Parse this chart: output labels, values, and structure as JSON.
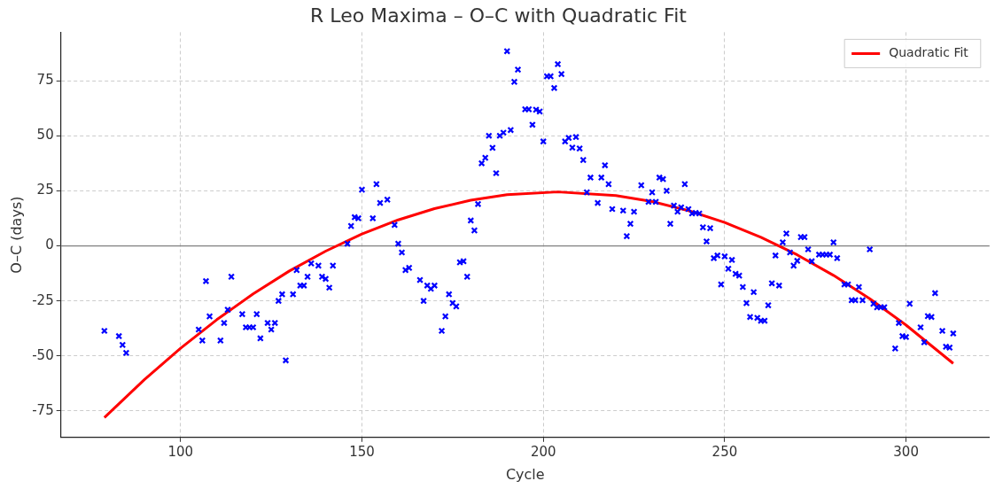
{
  "chart_data": {
    "type": "scatter",
    "title": "R Leo Maxima – O–C with Quadratic Fit",
    "xlabel": "Cycle",
    "ylabel": "O–C (days)",
    "xlim": [
      67,
      323
    ],
    "ylim": [
      -87,
      97
    ],
    "xticks": [
      100,
      150,
      200,
      250,
      300
    ],
    "yticks": [
      -75,
      -50,
      -25,
      0,
      25,
      50,
      75
    ],
    "grid": true,
    "legend": "top right",
    "marker": "cross",
    "ref_lines": [
      {
        "axis": "y",
        "value": 0,
        "color": "#808080"
      }
    ],
    "series": [
      {
        "color": "#0000ff",
        "x": [
          79,
          83,
          84,
          85,
          105,
          106,
          107,
          108,
          111,
          112,
          113,
          114,
          117,
          118,
          119,
          120,
          121,
          122,
          124,
          125,
          126,
          127,
          128,
          129,
          131,
          132,
          133,
          134,
          135,
          136,
          138,
          139,
          140,
          141,
          142,
          146,
          147,
          148,
          149,
          150,
          153,
          154,
          155,
          157,
          159,
          160,
          161,
          162,
          163,
          166,
          167,
          168,
          169,
          170,
          172,
          173,
          174,
          175,
          176,
          177,
          178,
          179,
          180,
          181,
          182,
          183,
          184,
          185,
          186,
          187,
          188,
          189,
          190,
          191,
          192,
          193,
          195,
          196,
          197,
          198,
          199,
          200,
          201,
          202,
          203,
          204,
          205,
          206,
          207,
          208,
          209,
          210,
          211,
          212,
          213,
          215,
          216,
          217,
          218,
          219,
          222,
          223,
          224,
          225,
          227,
          229,
          230,
          231,
          232,
          233,
          234,
          235,
          236,
          237,
          238,
          239,
          240,
          241,
          242,
          243,
          244,
          245,
          246,
          247,
          248,
          249,
          250,
          251,
          252,
          253,
          254,
          255,
          256,
          257,
          258,
          259,
          260,
          261,
          262,
          263,
          264,
          265,
          266,
          267,
          268,
          269,
          270,
          271,
          272,
          273,
          274,
          276,
          277,
          278,
          279,
          280,
          281,
          283,
          284,
          285,
          286,
          287,
          288,
          290,
          291,
          292,
          293,
          294,
          297,
          298,
          299,
          300,
          301,
          304,
          305,
          306,
          307,
          308,
          310,
          311,
          312,
          313
        ],
        "values": [
          -38.6,
          -41,
          -45,
          -48.6,
          -38,
          -43,
          -16,
          -32,
          -43,
          -35,
          -29,
          -14,
          -31,
          -37,
          -37,
          -37,
          -31,
          -42,
          -35,
          -38,
          -35,
          -25,
          -22,
          -52,
          -22,
          -11,
          -18,
          -18,
          -14,
          -8,
          -9,
          -14,
          -15,
          -19,
          -9,
          1,
          9,
          13,
          12.5,
          25.5,
          12.5,
          28,
          19.5,
          21,
          9.5,
          1,
          -3,
          -11,
          -10,
          -15.5,
          -25,
          -18,
          -19.5,
          -18,
          -38.6,
          -32,
          -22,
          -26,
          -27.5,
          -7.5,
          -7,
          -14,
          11.5,
          7,
          19,
          37.5,
          40,
          50,
          44.5,
          33,
          50,
          51.4,
          88.4,
          52.6,
          74.5,
          80,
          62,
          62,
          55,
          61.8,
          61,
          47.4,
          77,
          77,
          71.7,
          82.5,
          78,
          47.4,
          49,
          44.6,
          49.4,
          44.2,
          39,
          24.3,
          31,
          19.5,
          31,
          36.6,
          28,
          16.7,
          16,
          4.4,
          10,
          15.5,
          27.5,
          20,
          24.3,
          20,
          31,
          30.3,
          25,
          10,
          18.3,
          15.5,
          17.5,
          28,
          16.7,
          14.7,
          15,
          14.7,
          8.4,
          2,
          8,
          -5.6,
          -4.4,
          -17.5,
          -4.8,
          -10.4,
          -6.4,
          -12.7,
          -13.5,
          -18.7,
          -26,
          -32.3,
          -21,
          -32.7,
          -34,
          -34,
          -27,
          -17,
          -4.4,
          -18,
          1.6,
          5.6,
          -3,
          -9,
          -6.8,
          4,
          4,
          -1.6,
          -7,
          -4,
          -4,
          -4,
          -4,
          1.6,
          -5.6,
          -17.5,
          -17.5,
          -24.7,
          -24.7,
          -18.7,
          -24.7,
          -1.6,
          -26.3,
          -27.9,
          -27.9,
          -27.9,
          -46.6,
          -35,
          -41,
          -41.4,
          -26.3,
          -37,
          -43.8,
          -31.9,
          -32.3,
          -21.5,
          -38.6,
          -45.8,
          -46.2,
          -39.8
        ]
      },
      {
        "type": "line",
        "name": "Quadratic Fit",
        "color": "#ff0000",
        "marker": "none",
        "line_style": "solid",
        "x": [
          79,
          90,
          100,
          110,
          120,
          130,
          140,
          150,
          160,
          170,
          180,
          190,
          204,
          220,
          230,
          240,
          250,
          260,
          270,
          280,
          290,
          300,
          313
        ],
        "values": [
          -78,
          -60.8,
          -46.5,
          -33.5,
          -21.8,
          -11.4,
          -2.4,
          5.4,
          11.8,
          16.9,
          20.7,
          23.2,
          24.5,
          22.8,
          20.1,
          16,
          10.6,
          3.9,
          -4.1,
          -13.4,
          -24,
          -36,
          -53.4
        ]
      }
    ]
  }
}
